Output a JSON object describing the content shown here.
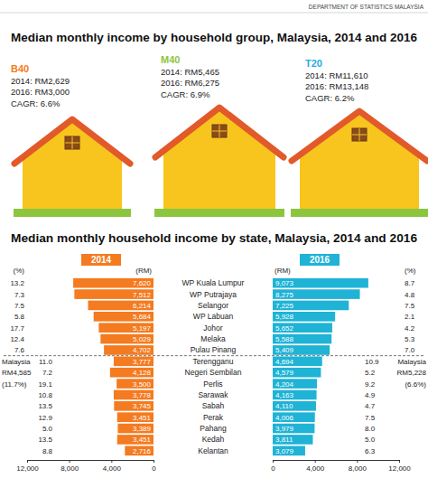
{
  "source": "DEPARTMENT OF STATISTICS MALAYSIA",
  "household_groups": {
    "title": "Median monthly income by household group, Malaysia, 2014 and 2016",
    "groups": [
      {
        "name": "B40",
        "color": "#f47b20",
        "lines": [
          "2014: RM2,629",
          "2016: RM3,000",
          "CAGR: 6.6%"
        ]
      },
      {
        "name": "M40",
        "color": "#8dc63f",
        "lines": [
          "2014: RM5,465",
          "2016: RM6,275",
          "CAGR: 6.9%"
        ]
      },
      {
        "name": "T20",
        "color": "#27aae1",
        "lines": [
          "2014: RM11,610",
          "2016: RM13,148",
          "CAGR: 6.2%"
        ]
      }
    ]
  },
  "chart_data": {
    "type": "bar",
    "orientation": "horizontal",
    "title": "Median monthly household income by state, Malaysia, 2014 and 2016",
    "categories": [
      "WP Kuala Lumpur",
      "WP Putrajaya",
      "Selangor",
      "WP Labuan",
      "Johor",
      "Melaka",
      "Pulau Pinang",
      "Terengganu",
      "Negeri Sembilan",
      "Perlis",
      "Sarawak",
      "Sabah",
      "Perak",
      "Pahang",
      "Kedah",
      "Kelantan"
    ],
    "value_header": "(RM)",
    "growth_header": "(%)",
    "series": [
      {
        "name": "2014",
        "color": "#f47b20",
        "values": [
          7620,
          7512,
          6214,
          5684,
          5197,
          5029,
          4702,
          3777,
          4128,
          3500,
          3778,
          3745,
          3451,
          3389,
          3451,
          2716
        ],
        "value_labels": [
          "7,620",
          "7,512",
          "6,214",
          "5,684",
          "5,197",
          "5,029",
          "4,702",
          "3,777",
          "4,128",
          "3,500",
          "3,778",
          "3,745",
          "3,451",
          "3,389",
          "3,451",
          "2,716"
        ],
        "growth": [
          "13.2",
          "7.3",
          "7.5",
          "5.8",
          "17.7",
          "12.4",
          "7.6",
          "11.0",
          "7.2",
          "19.1",
          "10.8",
          "13.5",
          "12.9",
          "5.0",
          "13.5",
          "8.8"
        ],
        "national": {
          "label": "Malaysia",
          "value": 4585,
          "value_label": "RM4,585",
          "growth": "(11.7%)"
        }
      },
      {
        "name": "2016",
        "color": "#1fb3d6",
        "values": [
          9073,
          8275,
          7225,
          5928,
          5652,
          5588,
          5409,
          4694,
          4579,
          4204,
          4163,
          4110,
          4006,
          3979,
          3811,
          3079
        ],
        "value_labels": [
          "9,073",
          "8,275",
          "7,225",
          "5,928",
          "5,652",
          "5,588",
          "5,409",
          "4,694",
          "4,579",
          "4,204",
          "4,163",
          "4,110",
          "4,006",
          "3,979",
          "3,811",
          "3,079"
        ],
        "growth": [
          "8.7",
          "4.8",
          "7.5",
          "2.1",
          "4.2",
          "5.3",
          "7.0",
          "10.9",
          "5.2",
          "9.2",
          "4.9",
          "4.7",
          "7.5",
          "8.0",
          "5.0",
          "6.3"
        ],
        "national": {
          "label": "Malaysia",
          "value": 5228,
          "value_label": "RM5,228",
          "growth": "(6.6%)"
        }
      }
    ],
    "xlim": [
      0,
      12000
    ],
    "xticks": [
      0,
      {
        "value": 4000,
        "label": "4,000"
      },
      {
        "value": 8000,
        "label": "8,000"
      },
      {
        "value": 12000,
        "label": "12,000"
      }
    ],
    "grid": false,
    "data_labels": true
  }
}
